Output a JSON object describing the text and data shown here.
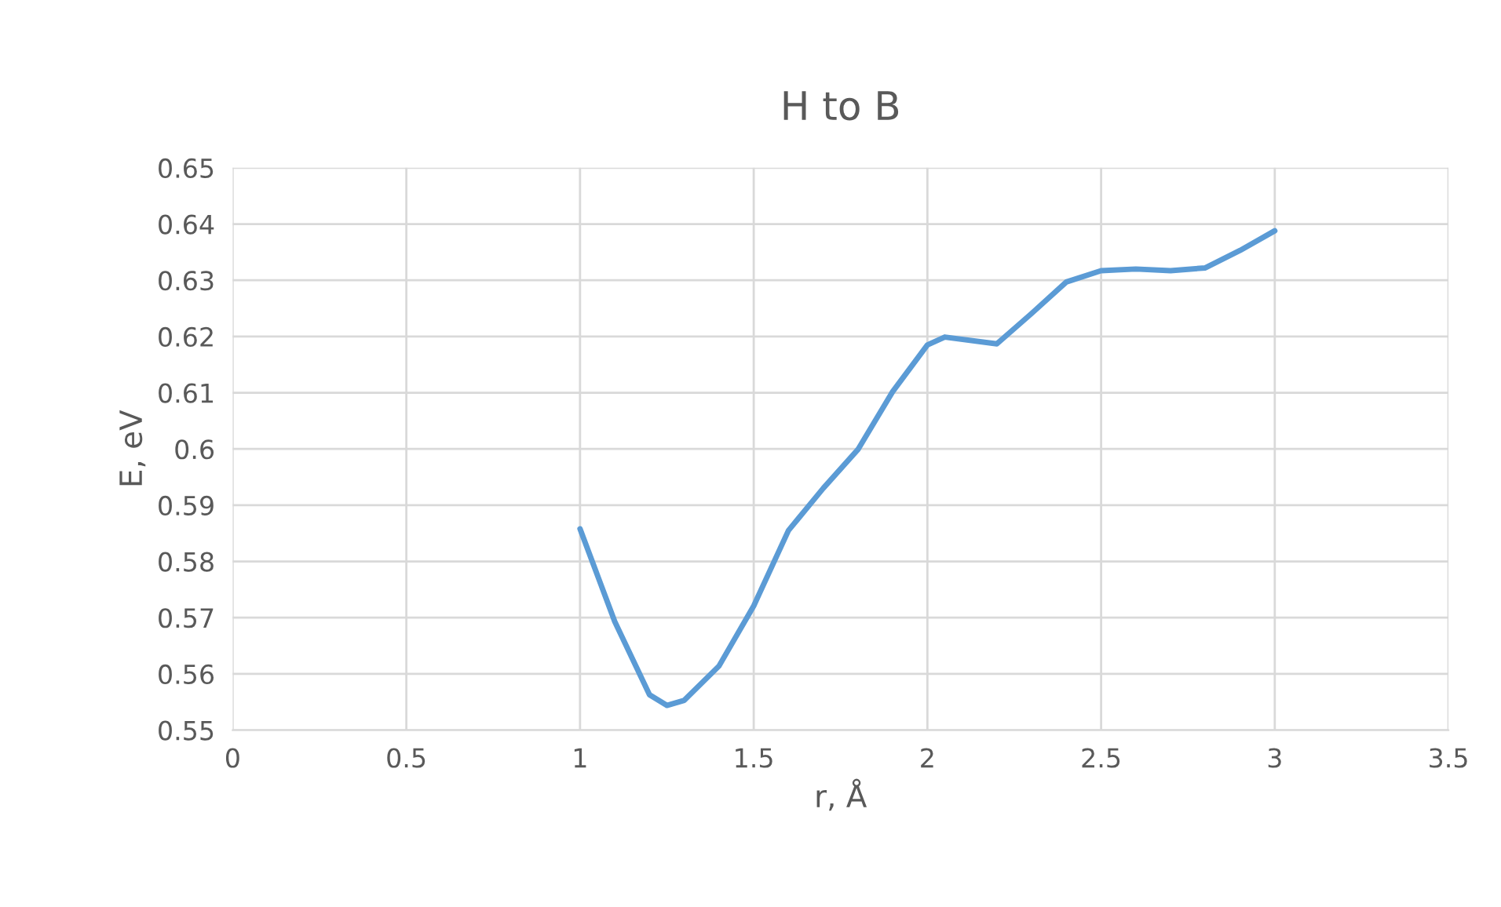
{
  "chart_data": {
    "type": "line",
    "title": "H to B",
    "xlabel": "r, Å",
    "ylabel": "E, eV",
    "series": [
      {
        "color": "#5b9bd5",
        "x": [
          1.0,
          1.1,
          1.2,
          1.25,
          1.3,
          1.4,
          1.5,
          1.6,
          1.7,
          1.8,
          1.9,
          2.0,
          2.05,
          2.2,
          2.3,
          2.4,
          2.5,
          2.6,
          2.7,
          2.8,
          2.9,
          3.0
        ],
        "values": [
          0.5858,
          0.5693,
          0.5563,
          0.5544,
          0.5553,
          0.5614,
          0.5721,
          0.5855,
          0.593,
          0.5999,
          0.6102,
          0.6185,
          0.6199,
          0.6187,
          0.6241,
          0.6297,
          0.6317,
          0.632,
          0.6317,
          0.6322,
          0.6353,
          0.6388
        ]
      }
    ],
    "xlim": [
      0,
      3.5
    ],
    "xticks": [
      0,
      0.5,
      1,
      1.5,
      2,
      2.5,
      3,
      3.5
    ],
    "ylim": [
      0.55,
      0.65
    ],
    "yticks": [
      0.55,
      0.56,
      0.57,
      0.58,
      0.59,
      0.6,
      0.61,
      0.62,
      0.63,
      0.64,
      0.65
    ],
    "grid": true,
    "legend": false,
    "marker": "none",
    "line_style": "solid"
  }
}
